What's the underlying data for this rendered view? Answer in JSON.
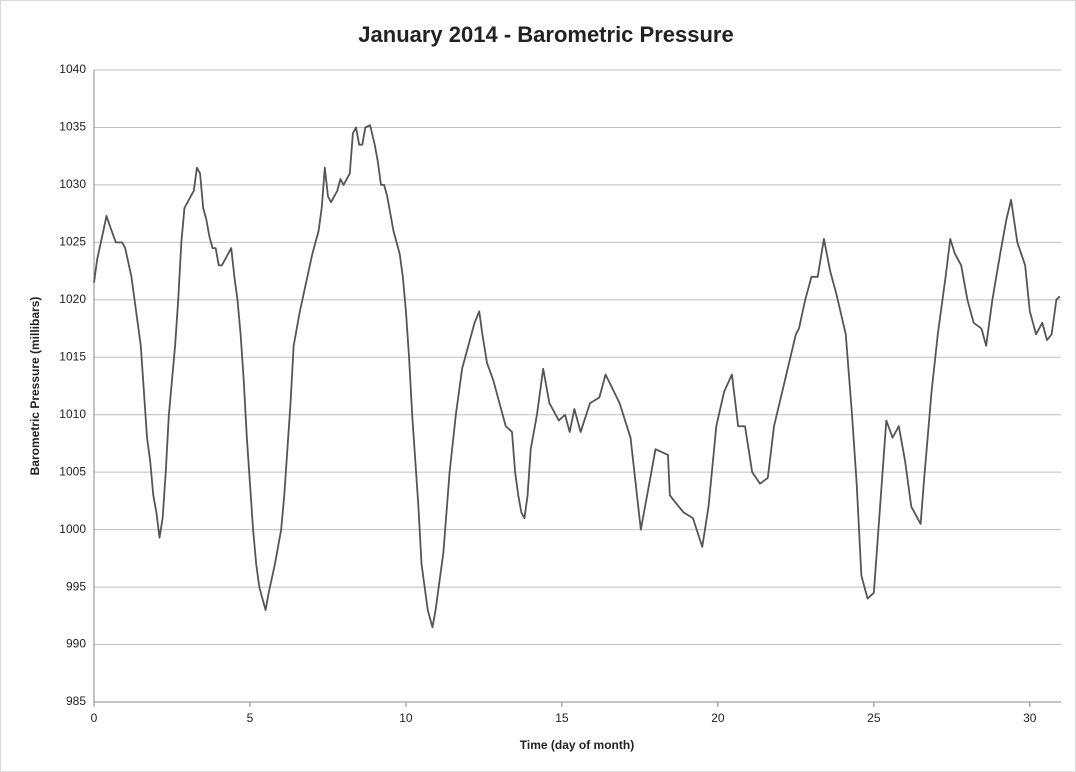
{
  "chart_data": {
    "type": "line",
    "title": "January 2014 - Barometric Pressure",
    "x_label": "Time (day of month)",
    "y_label": "Barometric Pressure (millibars)",
    "xlim": [
      0,
      31
    ],
    "xticks": [
      0,
      5,
      10,
      15,
      20,
      25,
      30
    ],
    "ylim": [
      985,
      1040
    ],
    "yticks": [
      985,
      990,
      995,
      1000,
      1005,
      1010,
      1015,
      1020,
      1025,
      1030,
      1035,
      1040
    ],
    "grid": true,
    "x": [
      0,
      0.1,
      0.3,
      0.4,
      0.5,
      0.7,
      0.9,
      1.0,
      1.2,
      1.3,
      1.4,
      1.5,
      1.6,
      1.7,
      1.8,
      1.9,
      2.0,
      2.1,
      2.2,
      2.3,
      2.4,
      2.5,
      2.6,
      2.7,
      2.8,
      2.9,
      3.0,
      3.1,
      3.2,
      3.3,
      3.4,
      3.5,
      3.6,
      3.7,
      3.8,
      3.9,
      4.0,
      4.1,
      4.3,
      4.4,
      4.5,
      4.6,
      4.7,
      4.8,
      4.9,
      5.0,
      5.1,
      5.2,
      5.3,
      5.4,
      5.5,
      5.6,
      5.8,
      6.0,
      6.1,
      6.2,
      6.3,
      6.4,
      6.5,
      6.6,
      6.8,
      7.0,
      7.2,
      7.3,
      7.4,
      7.5,
      7.6,
      7.8,
      7.9,
      8.0,
      8.2,
      8.3,
      8.4,
      8.5,
      8.6,
      8.7,
      8.85,
      9.0,
      9.1,
      9.2,
      9.3,
      9.4,
      9.6,
      9.8,
      9.9,
      10.0,
      10.1,
      10.2,
      10.3,
      10.4,
      10.5,
      10.6,
      10.7,
      10.85,
      10.95,
      11.0,
      11.2,
      11.4,
      11.6,
      11.8,
      12.0,
      12.2,
      12.35,
      12.45,
      12.6,
      12.8,
      13.0,
      13.2,
      13.4,
      13.5,
      13.6,
      13.7,
      13.8,
      13.9,
      14.0,
      14.2,
      14.4,
      14.6,
      14.9,
      15.1,
      15.25,
      15.4,
      15.6,
      15.9,
      16.2,
      16.4,
      16.85,
      17.2,
      17.53,
      17.8,
      18.0,
      18.4,
      18.46,
      18.6,
      18.9,
      19.2,
      19.5,
      19.7,
      19.95,
      20.2,
      20.45,
      20.65,
      20.87,
      21.1,
      21.35,
      21.6,
      21.8,
      22.15,
      22.5,
      22.6,
      22.8,
      23.0,
      23.2,
      23.4,
      23.6,
      23.8,
      24.1,
      24.3,
      24.45,
      24.6,
      24.8,
      25.0,
      25.2,
      25.4,
      25.6,
      25.8,
      26.0,
      26.2,
      26.5,
      26.6,
      26.85,
      27.05,
      27.3,
      27.45,
      27.6,
      27.8,
      28.0,
      28.2,
      28.45,
      28.6,
      28.8,
      29.05,
      29.25,
      29.4,
      29.6,
      29.85,
      30.0,
      30.2,
      30.4,
      30.55,
      30.7,
      30.85,
      30.96
    ],
    "series": [
      {
        "name": "Barometric Pressure",
        "color": "#555555",
        "values": [
          1021.5,
          1023.5,
          1026,
          1027.3,
          1026.5,
          1025,
          1025,
          1024.5,
          1022,
          1020,
          1018,
          1016,
          1012,
          1008,
          1006,
          1003,
          1001.5,
          999.3,
          1001,
          1005,
          1010,
          1013,
          1016,
          1020,
          1025,
          1028,
          1028.5,
          1029,
          1029.5,
          1031.5,
          1031,
          1028,
          1027,
          1025.5,
          1024.5,
          1024.5,
          1023,
          1023,
          1024,
          1024.5,
          1022,
          1020,
          1017,
          1013,
          1008,
          1004,
          1000,
          997,
          995,
          994,
          993,
          994.5,
          997,
          1000,
          1003,
          1007,
          1011,
          1016,
          1017.5,
          1019,
          1021.5,
          1024,
          1026,
          1028,
          1031.5,
          1029,
          1028.5,
          1029.5,
          1030.5,
          1030,
          1031,
          1034.5,
          1035,
          1033.5,
          1033.5,
          1035,
          1035.2,
          1033.5,
          1032,
          1030,
          1030,
          1029,
          1026,
          1024,
          1022,
          1019,
          1015,
          1010,
          1006,
          1002,
          997,
          995,
          993,
          991.5,
          993,
          994,
          998,
          1005,
          1010,
          1014,
          1016,
          1018,
          1019,
          1017,
          1014.5,
          1013,
          1011,
          1009,
          1008.5,
          1005,
          1003,
          1001.5,
          1001,
          1003,
          1007,
          1010,
          1014,
          1011,
          1009.5,
          1010,
          1008.5,
          1010.5,
          1008.5,
          1011,
          1011.5,
          1013.5,
          1011,
          1008,
          1000,
          1004,
          1007,
          1006.5,
          1003,
          1002.5,
          1001.5,
          1001,
          998.5,
          1002,
          1009,
          1012,
          1013.5,
          1009,
          1009,
          1005,
          1004,
          1004.5,
          1009,
          1013,
          1017,
          1017.5,
          1020,
          1022,
          1022,
          1025.3,
          1022.5,
          1020.5,
          1017,
          1010,
          1004,
          996,
          994,
          994.5,
          1002,
          1009.5,
          1008,
          1009,
          1006,
          1002,
          1000.5,
          1004,
          1012,
          1017,
          1022,
          1025.3,
          1024,
          1023,
          1020,
          1018,
          1017.5,
          1016,
          1020,
          1024,
          1027,
          1028.7,
          1025,
          1023,
          1019,
          1017,
          1018,
          1016.5,
          1017,
          1020,
          1020.3
        ]
      }
    ]
  }
}
